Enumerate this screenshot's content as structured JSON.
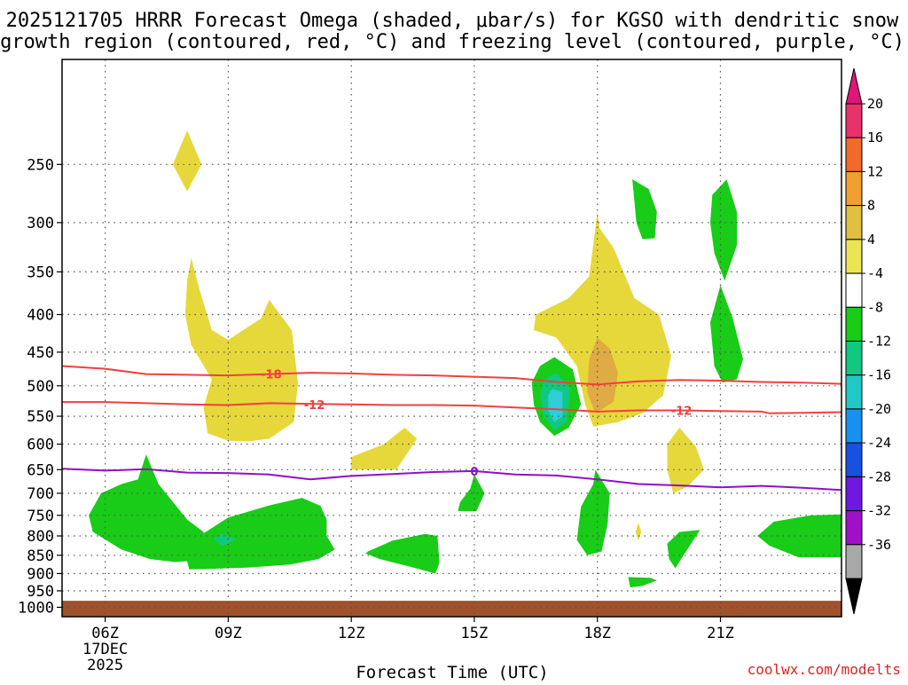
{
  "chart_data": {
    "type": "heatmap",
    "title_lines": [
      "2025121705 HRRR Forecast Omega (shaded, μbar/s) for KGSO with dendritic snow",
      "growth region (contoured, red, °C) and freezing level (contoured, purple, °C)"
    ],
    "xlabel": "Forecast Time (UTC)",
    "credit": "coolwx.com/modelts",
    "x_range_hours": [
      4.95,
      23.95
    ],
    "x_ticks": [
      {
        "hour": 6,
        "label": "06Z",
        "sub": [
          "17DEC",
          "2025"
        ]
      },
      {
        "hour": 9,
        "label": "09Z",
        "sub": []
      },
      {
        "hour": 12,
        "label": "12Z",
        "sub": []
      },
      {
        "hour": 15,
        "label": "15Z",
        "sub": []
      },
      {
        "hour": 18,
        "label": "18Z",
        "sub": []
      },
      {
        "hour": 21,
        "label": "21Z",
        "sub": []
      }
    ],
    "y_range_hpa": [
      1030,
      180
    ],
    "y_ticks": [
      250,
      300,
      350,
      400,
      450,
      500,
      550,
      600,
      650,
      700,
      750,
      800,
      850,
      900,
      950,
      1000
    ],
    "ground_hpa": 980,
    "colorbar": {
      "labels": [
        "20",
        "16",
        "12",
        "8",
        "4",
        "-4",
        "-8",
        "-12",
        "-16",
        "-20",
        "-24",
        "-28",
        "-32",
        "-36"
      ],
      "bands": [
        "#e8336a",
        "#f06a2a",
        "#f0a030",
        "#e0c040",
        "#ece454",
        "#ffffff",
        "#18cc18",
        "#10c880",
        "#20c8c8",
        "#1890f0",
        "#1850e0",
        "#7018e0",
        "#a010c8",
        "#a8a8a8"
      ],
      "top_arrow": "#e0147a",
      "bottom_arrow": "#000000"
    },
    "contours": [
      {
        "name": "dgz-minus-18",
        "value": "-18",
        "color": "#f04040",
        "points": [
          [
            4.95,
            470
          ],
          [
            6,
            474
          ],
          [
            7,
            482
          ],
          [
            8,
            483
          ],
          [
            9,
            484
          ],
          [
            10,
            482
          ],
          [
            11,
            480
          ],
          [
            12,
            481
          ],
          [
            13,
            483
          ],
          [
            14,
            484
          ],
          [
            15,
            486
          ],
          [
            16,
            488
          ],
          [
            17,
            494
          ],
          [
            18,
            498
          ],
          [
            19,
            493
          ],
          [
            20,
            491
          ],
          [
            21,
            492
          ],
          [
            22,
            494
          ],
          [
            23,
            495
          ],
          [
            23.95,
            497
          ]
        ],
        "label_at": [
          10.05,
          482
        ]
      },
      {
        "name": "dgz-minus-12",
        "value": "-12",
        "color": "#f04040",
        "points": [
          [
            4.95,
            526
          ],
          [
            6,
            526
          ],
          [
            7,
            528
          ],
          [
            8,
            530
          ],
          [
            9,
            531
          ],
          [
            10,
            528
          ],
          [
            11,
            529
          ],
          [
            12,
            530
          ],
          [
            13,
            531
          ],
          [
            14,
            531
          ],
          [
            15,
            532
          ],
          [
            16,
            535
          ],
          [
            17,
            538
          ],
          [
            18,
            542
          ],
          [
            19,
            540
          ],
          [
            20,
            540
          ],
          [
            21,
            541
          ],
          [
            22,
            542
          ],
          [
            22.2,
            545
          ],
          [
            23,
            544
          ],
          [
            23.95,
            543
          ]
        ],
        "label_at": [
          11.1,
          530
        ],
        "label2_at": [
          20.05,
          540
        ]
      },
      {
        "name": "freezing-level-0",
        "value": "0",
        "color": "#9010c8",
        "points": [
          [
            4.95,
            648
          ],
          [
            6,
            652
          ],
          [
            7,
            649
          ],
          [
            8,
            656
          ],
          [
            9,
            657
          ],
          [
            10,
            660
          ],
          [
            11,
            670
          ],
          [
            12,
            663
          ],
          [
            13,
            659
          ],
          [
            14,
            655
          ],
          [
            15,
            653
          ],
          [
            16,
            660
          ],
          [
            17,
            662
          ],
          [
            18,
            670
          ],
          [
            19,
            680
          ],
          [
            20,
            683
          ],
          [
            21,
            687
          ],
          [
            22,
            684
          ],
          [
            23,
            688
          ],
          [
            23.95,
            693
          ]
        ],
        "label_at": [
          15.0,
          653
        ]
      }
    ],
    "omega_regions": [
      {
        "name": "rise-yellow-a",
        "value": 4,
        "color": "#e6d83a",
        "points": [
          [
            8.0,
            225
          ],
          [
            8.35,
            250
          ],
          [
            8.0,
            272
          ],
          [
            7.65,
            250
          ]
        ]
      },
      {
        "name": "rise-yellow-b",
        "value": 4,
        "color": "#e6d83a",
        "points": [
          [
            8.1,
            335
          ],
          [
            8.3,
            370
          ],
          [
            8.6,
            420
          ],
          [
            9.0,
            433
          ],
          [
            9.8,
            405
          ],
          [
            10.0,
            382
          ],
          [
            10.55,
            420
          ],
          [
            10.7,
            495
          ],
          [
            10.6,
            560
          ],
          [
            10.0,
            590
          ],
          [
            9.5,
            595
          ],
          [
            9.0,
            594
          ],
          [
            8.5,
            580
          ],
          [
            8.4,
            535
          ],
          [
            8.6,
            490
          ],
          [
            8.1,
            440
          ],
          [
            7.95,
            400
          ],
          [
            8.0,
            360
          ]
        ]
      },
      {
        "name": "rise-yellow-c",
        "value": 4,
        "color": "#e6d83a",
        "points": [
          [
            12.0,
            625
          ],
          [
            12.8,
            600
          ],
          [
            13.3,
            570
          ],
          [
            13.6,
            590
          ],
          [
            13.1,
            650
          ],
          [
            12.0,
            650
          ]
        ]
      },
      {
        "name": "rise-yellow-d",
        "value": 4,
        "color": "#e6d83a",
        "points": [
          [
            16.5,
            400
          ],
          [
            17.3,
            380
          ],
          [
            17.8,
            355
          ],
          [
            18.0,
            290
          ],
          [
            18.05,
            305
          ],
          [
            18.4,
            325
          ],
          [
            18.9,
            380
          ],
          [
            19.5,
            400
          ],
          [
            19.8,
            455
          ],
          [
            19.6,
            515
          ],
          [
            19.1,
            545
          ],
          [
            18.5,
            560
          ],
          [
            17.9,
            568
          ],
          [
            17.7,
            530
          ],
          [
            17.5,
            470
          ],
          [
            17.0,
            430
          ],
          [
            16.45,
            420
          ]
        ]
      },
      {
        "name": "rise-orange-d",
        "value": 8,
        "color": "#e0aa44",
        "points": [
          [
            18.0,
            430
          ],
          [
            18.3,
            445
          ],
          [
            18.5,
            480
          ],
          [
            18.4,
            525
          ],
          [
            17.95,
            545
          ],
          [
            17.75,
            510
          ],
          [
            17.8,
            460
          ]
        ]
      },
      {
        "name": "rise-yellow-e",
        "value": 4,
        "color": "#e6d83a",
        "points": [
          [
            20.0,
            570
          ],
          [
            20.4,
            605
          ],
          [
            20.6,
            650
          ],
          [
            20.2,
            685
          ],
          [
            19.85,
            700
          ],
          [
            19.7,
            650
          ],
          [
            19.7,
            600
          ]
        ]
      },
      {
        "name": "rise-yellow-f",
        "value": 4,
        "color": "#e6d83a",
        "points": [
          [
            19.0,
            768
          ],
          [
            19.07,
            790
          ],
          [
            19.0,
            812
          ],
          [
            18.93,
            790
          ]
        ]
      },
      {
        "name": "sink-green-a",
        "value": -4,
        "color": "#18cc18",
        "points": [
          [
            5.6,
            750
          ],
          [
            5.9,
            700
          ],
          [
            6.4,
            680
          ],
          [
            6.8,
            670
          ],
          [
            7.0,
            620
          ],
          [
            7.3,
            680
          ],
          [
            8.0,
            760
          ],
          [
            8.4,
            790
          ],
          [
            8.5,
            862
          ],
          [
            7.7,
            868
          ],
          [
            7.1,
            860
          ],
          [
            6.4,
            835
          ],
          [
            5.7,
            790
          ]
        ]
      },
      {
        "name": "sink-green-b",
        "value": -4,
        "color": "#18cc18",
        "points": [
          [
            7.9,
            825
          ],
          [
            8.3,
            800
          ],
          [
            9.0,
            755
          ],
          [
            10.0,
            727
          ],
          [
            10.8,
            710
          ],
          [
            11.25,
            728
          ],
          [
            11.4,
            760
          ],
          [
            11.4,
            800
          ],
          [
            11.6,
            835
          ],
          [
            11.2,
            860
          ],
          [
            10.5,
            875
          ],
          [
            9.5,
            883
          ],
          [
            8.5,
            887
          ],
          [
            8.05,
            888
          ]
        ]
      },
      {
        "name": "sink-teal-b",
        "value": -8,
        "color": "#10c880",
        "points": [
          [
            8.85,
            795
          ],
          [
            9.2,
            808
          ],
          [
            8.85,
            825
          ],
          [
            8.65,
            808
          ]
        ]
      },
      {
        "name": "sink-green-c",
        "value": -4,
        "color": "#18cc18",
        "points": [
          [
            12.4,
            840
          ],
          [
            13.0,
            812
          ],
          [
            13.8,
            795
          ],
          [
            14.1,
            800
          ],
          [
            14.15,
            870
          ],
          [
            14.05,
            900
          ],
          [
            13.4,
            880
          ],
          [
            12.7,
            860
          ],
          [
            12.35,
            845
          ]
        ]
      },
      {
        "name": "sink-green-d",
        "value": -4,
        "color": "#18cc18",
        "points": [
          [
            14.65,
            720
          ],
          [
            14.9,
            690
          ],
          [
            15.0,
            660
          ],
          [
            15.25,
            700
          ],
          [
            15.05,
            740
          ],
          [
            14.6,
            740
          ]
        ]
      },
      {
        "name": "sink-green-e",
        "value": -4,
        "color": "#18cc18",
        "points": [
          [
            16.4,
            495
          ],
          [
            16.6,
            470
          ],
          [
            16.95,
            457
          ],
          [
            17.4,
            475
          ],
          [
            17.6,
            530
          ],
          [
            17.3,
            570
          ],
          [
            16.95,
            585
          ],
          [
            16.6,
            560
          ],
          [
            16.45,
            530
          ]
        ]
      },
      {
        "name": "sink-teal-e",
        "value": -8,
        "color": "#10c880",
        "points": [
          [
            16.7,
            490
          ],
          [
            17.0,
            480
          ],
          [
            17.35,
            505
          ],
          [
            17.25,
            560
          ],
          [
            16.95,
            575
          ],
          [
            16.7,
            550
          ],
          [
            16.6,
            515
          ]
        ]
      },
      {
        "name": "sink-cyan-e",
        "value": -12,
        "color": "#30ccd8",
        "points": [
          [
            16.9,
            505
          ],
          [
            17.15,
            510
          ],
          [
            17.15,
            550
          ],
          [
            16.95,
            560
          ],
          [
            16.8,
            540
          ],
          [
            16.8,
            515
          ]
        ]
      },
      {
        "name": "sink-green-f",
        "value": -4,
        "color": "#18cc18",
        "points": [
          [
            17.6,
            730
          ],
          [
            17.9,
            680
          ],
          [
            17.95,
            650
          ],
          [
            18.3,
            700
          ],
          [
            18.25,
            770
          ],
          [
            18.1,
            840
          ],
          [
            17.75,
            850
          ],
          [
            17.5,
            810
          ]
        ]
      },
      {
        "name": "sink-green-g",
        "value": -4,
        "color": "#18cc18",
        "points": [
          [
            18.85,
            262
          ],
          [
            19.25,
            270
          ],
          [
            19.45,
            290
          ],
          [
            19.4,
            315
          ],
          [
            19.1,
            316
          ],
          [
            18.95,
            300
          ]
        ]
      },
      {
        "name": "sink-green-h",
        "value": -4,
        "color": "#18cc18",
        "points": [
          [
            19.7,
            820
          ],
          [
            20.0,
            790
          ],
          [
            20.5,
            785
          ],
          [
            20.1,
            850
          ],
          [
            19.9,
            885
          ],
          [
            19.75,
            860
          ]
        ]
      },
      {
        "name": "sink-green-i",
        "value": -4,
        "color": "#18cc18",
        "points": [
          [
            18.75,
            910
          ],
          [
            19.3,
            912
          ],
          [
            19.45,
            920
          ],
          [
            19.1,
            935
          ],
          [
            18.8,
            940
          ]
        ]
      },
      {
        "name": "sink-green-j",
        "value": -4,
        "color": "#18cc18",
        "points": [
          [
            20.8,
            275
          ],
          [
            21.15,
            262
          ],
          [
            21.4,
            290
          ],
          [
            21.4,
            322
          ],
          [
            21.1,
            360
          ],
          [
            20.85,
            330
          ],
          [
            20.75,
            300
          ]
        ]
      },
      {
        "name": "sink-green-k",
        "value": -4,
        "color": "#18cc18",
        "points": [
          [
            21.0,
            365
          ],
          [
            21.3,
            405
          ],
          [
            21.55,
            460
          ],
          [
            21.4,
            490
          ],
          [
            21.05,
            495
          ],
          [
            20.85,
            470
          ],
          [
            20.75,
            410
          ]
        ]
      },
      {
        "name": "sink-green-l",
        "value": -4,
        "color": "#18cc18",
        "points": [
          [
            21.9,
            800
          ],
          [
            22.3,
            765
          ],
          [
            23.2,
            750
          ],
          [
            23.95,
            748
          ],
          [
            23.95,
            855
          ],
          [
            22.9,
            855
          ],
          [
            22.2,
            825
          ]
        ]
      }
    ]
  }
}
